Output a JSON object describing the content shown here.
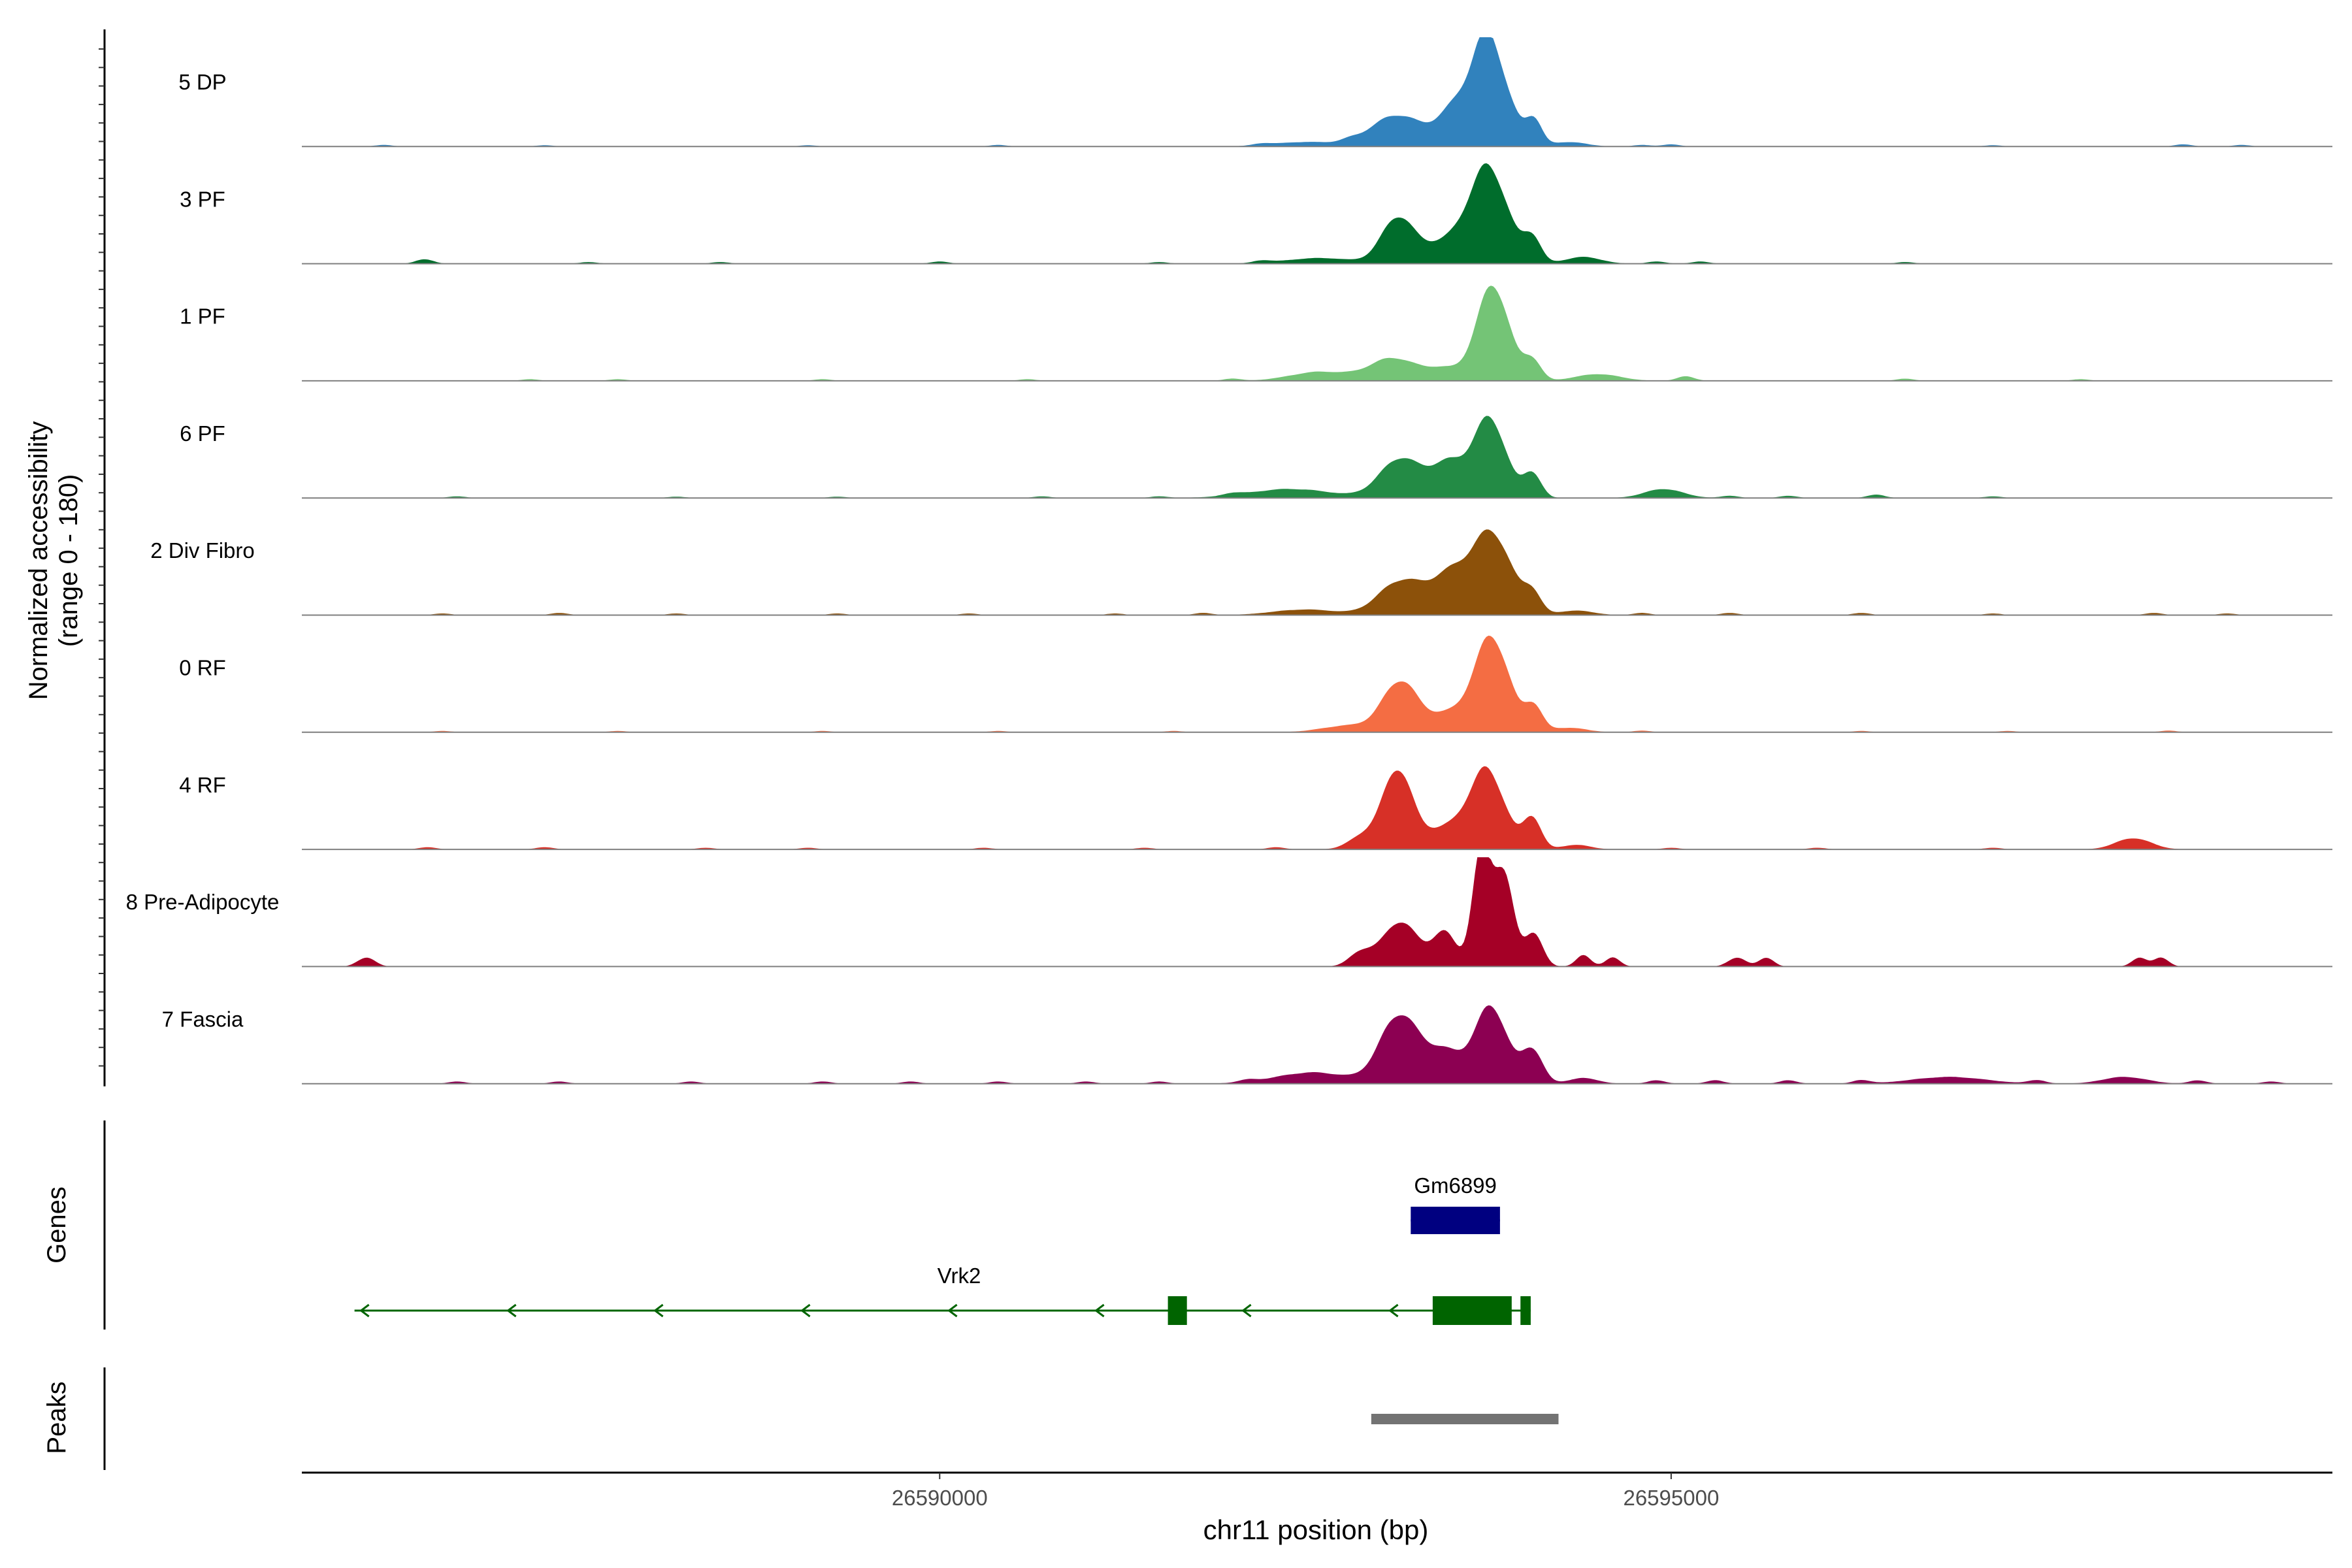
{
  "chart_data": {
    "type": "area",
    "chromosome": "chr11",
    "xlabel": "chr11 position (bp)",
    "ylabel_line1": "Normalized accessibility",
    "ylabel_line2": "(range 0 - 180)",
    "y_range": [
      0,
      180
    ],
    "xlim": [
      26585640,
      26599520
    ],
    "x_ticks": [
      26590000,
      26595000
    ],
    "x_tick_labels": [
      "26590000",
      "26595000"
    ],
    "tracks": [
      {
        "name": "5 DP",
        "color": "#3182bd",
        "peaks": [
          [
            26592500,
            4,
            220
          ],
          [
            26593130,
            28,
            180
          ],
          [
            26593750,
            100,
            110
          ],
          [
            26593520,
            30,
            110
          ],
          [
            26593940,
            8,
            60
          ],
          [
            26594060,
            24,
            55
          ],
          [
            26594300,
            4,
            120
          ]
        ],
        "blips": [
          [
            26586200,
            1.5
          ],
          [
            26587300,
            1.2
          ],
          [
            26589100,
            1.2
          ],
          [
            26590400,
            1.5
          ],
          [
            26592200,
            1.5
          ],
          [
            26592800,
            2
          ],
          [
            26594800,
            1.5
          ],
          [
            26595000,
            2
          ],
          [
            26597200,
            1.2
          ],
          [
            26598500,
            2
          ],
          [
            26598900,
            1.5
          ]
        ]
      },
      {
        "name": "3 PF",
        "color": "#006d2c",
        "peaks": [
          [
            26592600,
            5,
            230
          ],
          [
            26593130,
            40,
            110
          ],
          [
            26593450,
            18,
            150
          ],
          [
            26593750,
            85,
            130
          ],
          [
            26594050,
            22,
            60
          ],
          [
            26594400,
            6,
            120
          ]
        ],
        "blips": [
          [
            26586480,
            4
          ],
          [
            26587600,
            1.5
          ],
          [
            26588500,
            1.5
          ],
          [
            26590000,
            2
          ],
          [
            26591500,
            1.5
          ],
          [
            26592200,
            2
          ],
          [
            26594900,
            2
          ],
          [
            26595200,
            2
          ],
          [
            26596600,
            1.5
          ]
        ]
      },
      {
        "name": "1 PF",
        "color": "#74c476",
        "peaks": [
          [
            26592600,
            8,
            200
          ],
          [
            26593100,
            20,
            160
          ],
          [
            26593450,
            10,
            120
          ],
          [
            26593780,
            85,
            110
          ],
          [
            26594050,
            18,
            60
          ],
          [
            26594500,
            6,
            150
          ]
        ],
        "blips": [
          [
            26587200,
            1.5
          ],
          [
            26587800,
            1.5
          ],
          [
            26589200,
            1.5
          ],
          [
            26590600,
            1.5
          ],
          [
            26592000,
            2
          ],
          [
            26595100,
            4
          ],
          [
            26596600,
            2
          ],
          [
            26597800,
            1.5
          ]
        ]
      },
      {
        "name": "6 PF",
        "color": "#238b45",
        "peaks": [
          [
            26592400,
            8,
            280
          ],
          [
            26593150,
            35,
            140
          ],
          [
            26593480,
            30,
            120
          ],
          [
            26593760,
            70,
            110
          ],
          [
            26594050,
            22,
            60
          ],
          [
            26594950,
            8,
            130
          ]
        ],
        "blips": [
          [
            26586700,
            1.5
          ],
          [
            26588200,
            1.2
          ],
          [
            26589300,
            1.2
          ],
          [
            26590700,
            1.5
          ],
          [
            26591500,
            1.5
          ],
          [
            26592000,
            2
          ],
          [
            26595400,
            2
          ],
          [
            26595800,
            2
          ],
          [
            26596400,
            3
          ],
          [
            26597200,
            1.5
          ]
        ]
      },
      {
        "name": "2 Div Fibro",
        "color": "#8c510a",
        "peaks": [
          [
            26592500,
            5,
            220
          ],
          [
            26593150,
            30,
            150
          ],
          [
            26593500,
            35,
            140
          ],
          [
            26593780,
            70,
            130
          ],
          [
            26594050,
            18,
            60
          ],
          [
            26594350,
            4,
            120
          ]
        ],
        "blips": [
          [
            26586600,
            1.5
          ],
          [
            26587400,
            2
          ],
          [
            26588200,
            1.5
          ],
          [
            26589300,
            1.5
          ],
          [
            26590200,
            1.5
          ],
          [
            26591200,
            1.5
          ],
          [
            26591800,
            2
          ],
          [
            26594800,
            2
          ],
          [
            26595400,
            2
          ],
          [
            26596300,
            2
          ],
          [
            26597200,
            1.5
          ],
          [
            26598300,
            2
          ],
          [
            26598800,
            1.5
          ]
        ]
      },
      {
        "name": "0 RF",
        "color": "#f46d43",
        "peaks": [
          [
            26592800,
            6,
            180
          ],
          [
            26593150,
            45,
            120
          ],
          [
            26593470,
            15,
            120
          ],
          [
            26593770,
            85,
            120
          ],
          [
            26594060,
            22,
            60
          ],
          [
            26594300,
            4,
            120
          ]
        ],
        "blips": [
          [
            26586600,
            1.2
          ],
          [
            26587800,
            1.2
          ],
          [
            26589200,
            1.2
          ],
          [
            26590400,
            1.2
          ],
          [
            26591600,
            1.2
          ],
          [
            26594800,
            1.5
          ],
          [
            26596300,
            1.2
          ],
          [
            26597300,
            1.2
          ],
          [
            26598400,
            1.5
          ]
        ]
      },
      {
        "name": "4 RF",
        "color": "#d73027",
        "peaks": [
          [
            26592900,
            12,
            100
          ],
          [
            26593130,
            70,
            100
          ],
          [
            26593450,
            18,
            140
          ],
          [
            26593740,
            70,
            120
          ],
          [
            26594050,
            28,
            60
          ],
          [
            26594350,
            4,
            100
          ],
          [
            26598160,
            10,
            120
          ]
        ],
        "blips": [
          [
            26586500,
            2
          ],
          [
            26587300,
            2
          ],
          [
            26588400,
            1.5
          ],
          [
            26589100,
            1.5
          ],
          [
            26590300,
            1.5
          ],
          [
            26591400,
            1.5
          ],
          [
            26592300,
            2
          ],
          [
            26595000,
            1.5
          ],
          [
            26596000,
            1.5
          ],
          [
            26597200,
            1.5
          ]
        ]
      },
      {
        "name": "8 Pre-Adipocyte",
        "color": "#a50026",
        "peaks": [
          [
            26592880,
            12,
            80
          ],
          [
            26593150,
            40,
            120
          ],
          [
            26593450,
            30,
            80
          ],
          [
            26593700,
            100,
            60
          ],
          [
            26593850,
            85,
            70
          ],
          [
            26594060,
            30,
            60
          ],
          [
            26594400,
            10,
            50
          ],
          [
            26594600,
            8,
            50
          ],
          [
            26586080,
            8,
            60
          ],
          [
            26595450,
            8,
            60
          ],
          [
            26595650,
            8,
            50
          ],
          [
            26598200,
            8,
            50
          ],
          [
            26598350,
            8,
            50
          ]
        ],
        "blips": []
      },
      {
        "name": "7 Fascia",
        "color": "#8c0052",
        "peaks": [
          [
            26592550,
            10,
            250
          ],
          [
            26593140,
            60,
            130
          ],
          [
            26593450,
            28,
            130
          ],
          [
            26593770,
            68,
            110
          ],
          [
            26594050,
            30,
            70
          ],
          [
            26594400,
            5,
            100
          ],
          [
            26596900,
            6,
            250
          ],
          [
            26598100,
            6,
            150
          ]
        ],
        "blips": [
          [
            26586700,
            2
          ],
          [
            26587400,
            2
          ],
          [
            26588300,
            2
          ],
          [
            26589200,
            2
          ],
          [
            26589800,
            2
          ],
          [
            26590400,
            2
          ],
          [
            26591000,
            2
          ],
          [
            26591500,
            2
          ],
          [
            26592100,
            2
          ],
          [
            26594900,
            3
          ],
          [
            26595300,
            3
          ],
          [
            26595800,
            3
          ],
          [
            26596300,
            3
          ],
          [
            26597500,
            3
          ],
          [
            26598600,
            3
          ],
          [
            26599100,
            2
          ]
        ]
      }
    ],
    "genes_label": "Genes",
    "genes": [
      {
        "name": "Gm6899",
        "color": "#000080",
        "strand": "+",
        "start": 26593220,
        "end": 26593830,
        "exons": [
          [
            26593220,
            26593830
          ]
        ]
      },
      {
        "name": "Vrk2",
        "color": "#006400",
        "strand": "-",
        "start": 26586000,
        "end": 26594040,
        "exons": [
          [
            26591560,
            26591690
          ],
          [
            26593370,
            26593910
          ],
          [
            26593970,
            26594040
          ]
        ]
      }
    ],
    "peaks_label": "Peaks",
    "peak_regions": [
      [
        26592950,
        26594230
      ]
    ]
  }
}
